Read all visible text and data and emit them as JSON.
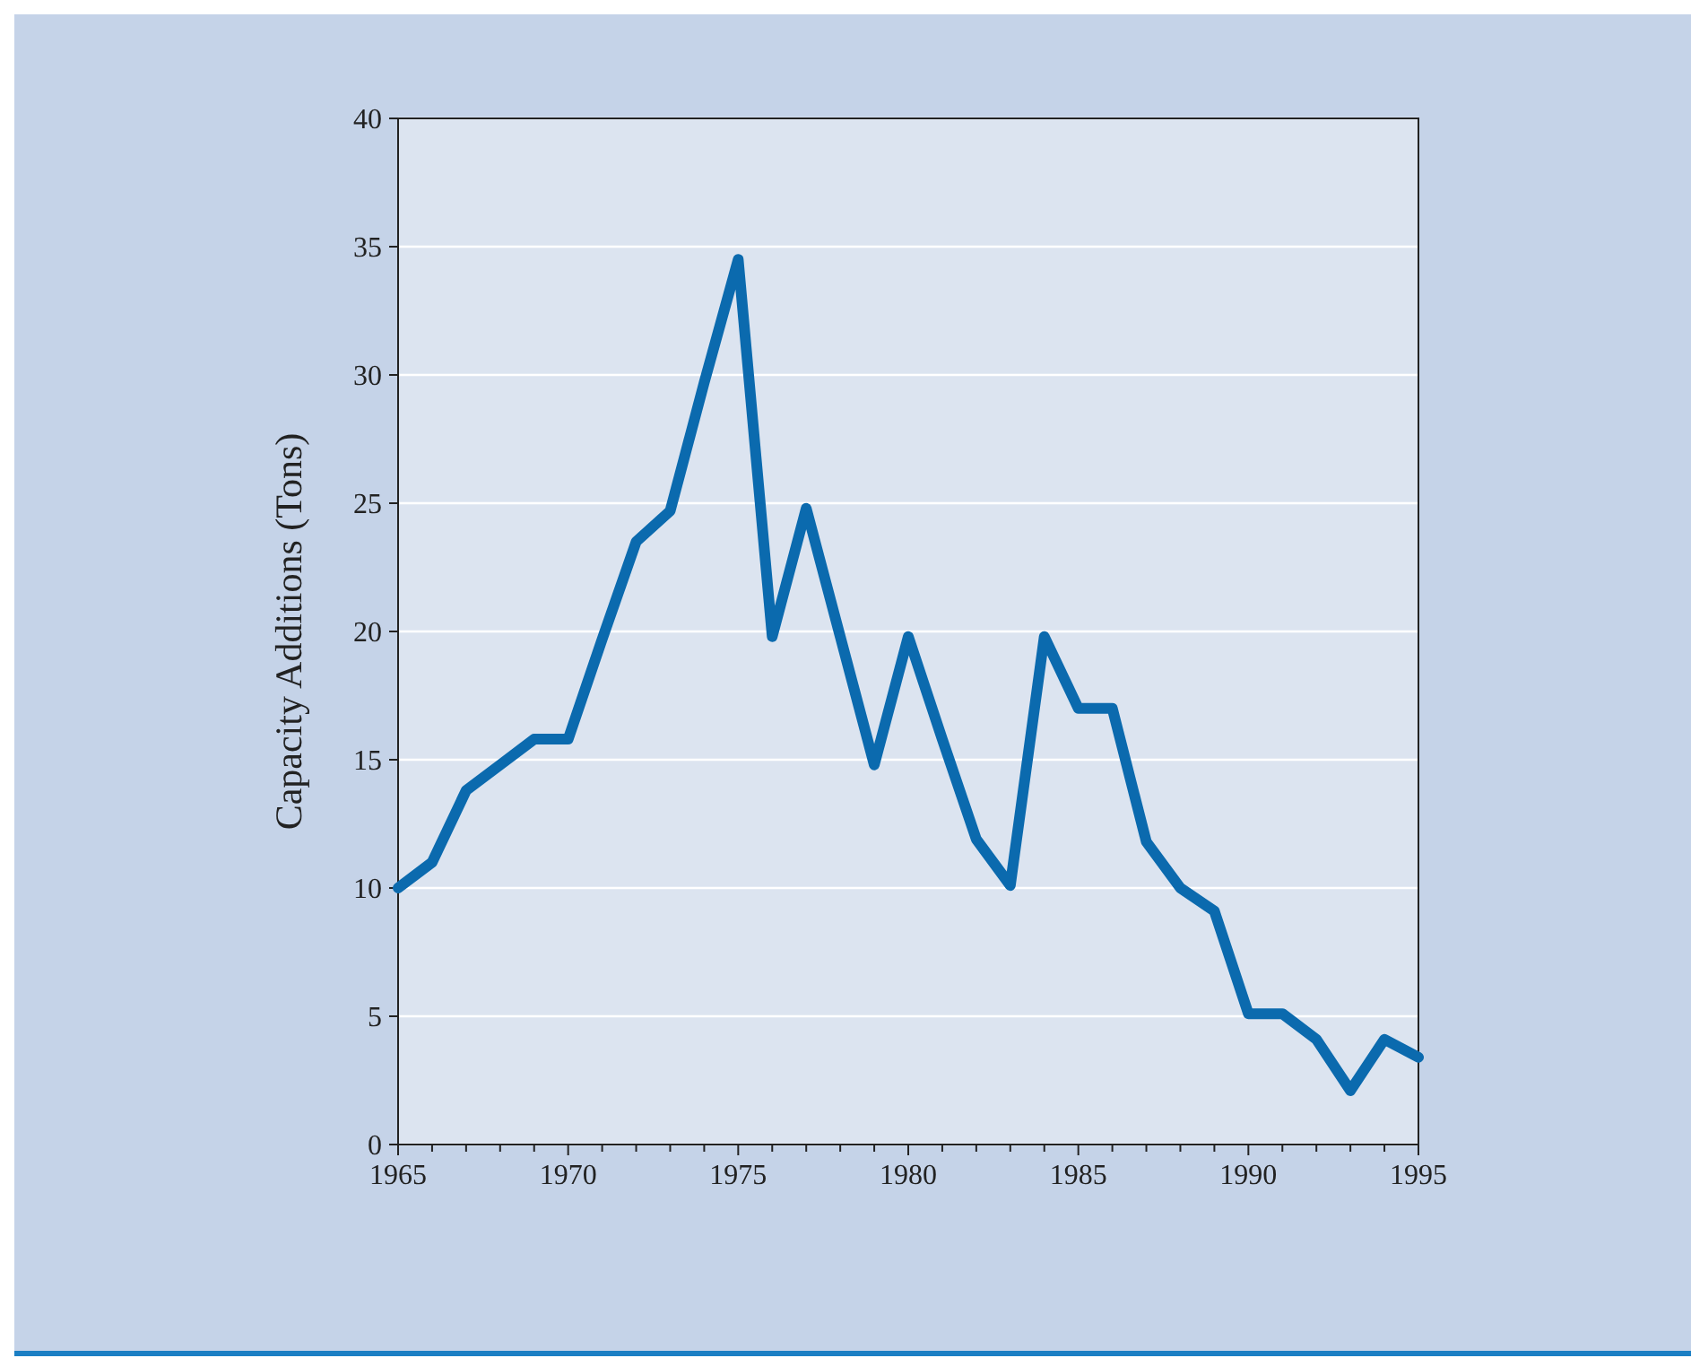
{
  "chart_data": {
    "type": "line",
    "ylabel": "Capacity Additions (Tons)",
    "x": [
      1965,
      1966,
      1967,
      1968,
      1969,
      1970,
      1971,
      1972,
      1973,
      1974,
      1975,
      1976,
      1977,
      1978,
      1979,
      1980,
      1981,
      1982,
      1983,
      1984,
      1985,
      1986,
      1987,
      1988,
      1989,
      1990,
      1991,
      1992,
      1993,
      1994,
      1995
    ],
    "series": [
      {
        "color": "#0b6aae",
        "values": [
          10,
          11,
          13.8,
          14.8,
          15.8,
          15.8,
          19.7,
          23.5,
          24.7,
          29.7,
          34.5,
          19.8,
          24.8,
          19.8,
          14.8,
          19.8,
          15.8,
          11.9,
          10.1,
          19.8,
          17,
          17,
          11.8,
          10,
          9.1,
          5.1,
          5.1,
          4.1,
          2.1,
          4.1,
          3.4
        ]
      }
    ],
    "xlim": [
      1965,
      1995
    ],
    "xticks": [
      1965,
      {
        "value": 1966,
        "label": null
      },
      {
        "value": 1967,
        "label": null
      },
      {
        "value": 1968,
        "label": null
      },
      {
        "value": 1969,
        "label": null
      },
      1970,
      {
        "value": 1971,
        "label": null
      },
      {
        "value": 1972,
        "label": null
      },
      {
        "value": 1973,
        "label": null
      },
      {
        "value": 1974,
        "label": null
      },
      1975,
      {
        "value": 1976,
        "label": null
      },
      {
        "value": 1977,
        "label": null
      },
      {
        "value": 1978,
        "label": null
      },
      {
        "value": 1979,
        "label": null
      },
      1980,
      {
        "value": 1981,
        "label": null
      },
      {
        "value": 1982,
        "label": null
      },
      {
        "value": 1983,
        "label": null
      },
      {
        "value": 1984,
        "label": null
      },
      1985,
      {
        "value": 1986,
        "label": null
      },
      {
        "value": 1987,
        "label": null
      },
      {
        "value": 1988,
        "label": null
      },
      {
        "value": 1989,
        "label": null
      },
      1990,
      {
        "value": 1991,
        "label": null
      },
      {
        "value": 1992,
        "label": null
      },
      {
        "value": 1993,
        "label": null
      },
      {
        "value": 1994,
        "label": null
      },
      1995
    ],
    "ylim": [
      0,
      40
    ],
    "yticks": [
      0,
      5,
      10,
      15,
      20,
      25,
      30,
      35,
      40
    ],
    "grid": "y",
    "line_style": "solid"
  }
}
